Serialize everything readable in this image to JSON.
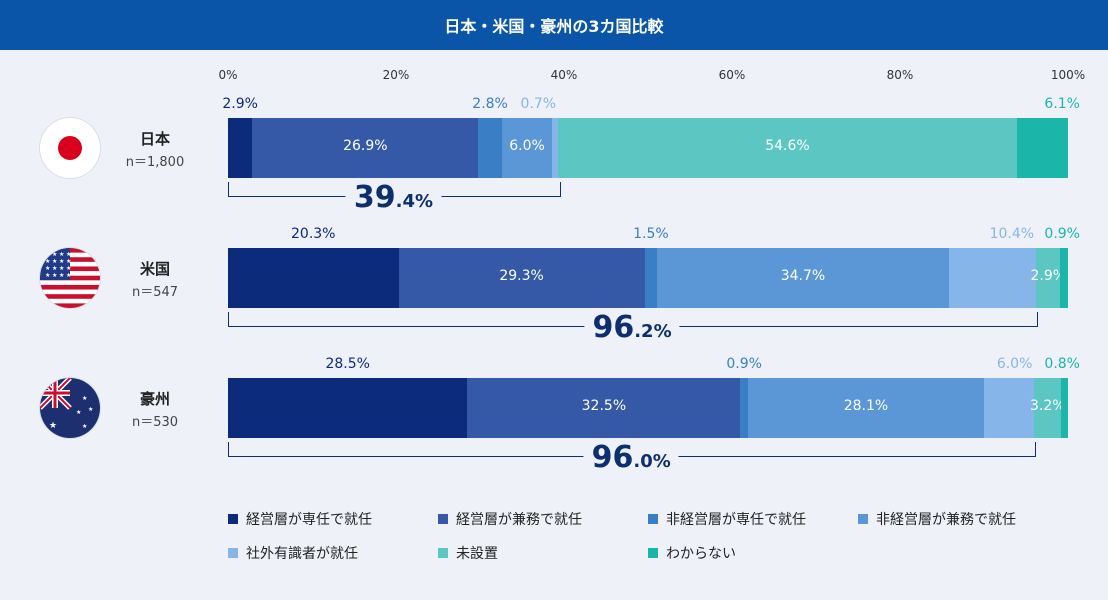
{
  "chart_data": {
    "type": "stacked-bar-horizontal",
    "title": "日本・米国・豪州の3カ国比較",
    "x_ticks": [
      "0%",
      "20%",
      "40%",
      "60%",
      "80%",
      "100%"
    ],
    "xlim": [
      0,
      100
    ],
    "categories": [
      {
        "name": "経営層が専任で就任",
        "color": "#0c2b7b"
      },
      {
        "name": "経営層が兼務で就任",
        "color": "#3659a7"
      },
      {
        "name": "非経営層が専任で就任",
        "color": "#3a7ec5"
      },
      {
        "name": "非経営層が兼務で就任",
        "color": "#5b97d6"
      },
      {
        "name": "社外有識者が就任",
        "color": "#86b6e9"
      },
      {
        "name": "未設置",
        "color": "#5cc7c2"
      },
      {
        "name": "わからない",
        "color": "#1bb5a9"
      }
    ],
    "rows": [
      {
        "country": "日本",
        "n_label": "n＝1,800",
        "flag": "japan-flag",
        "values": [
          2.9,
          26.9,
          2.8,
          6.0,
          0.7,
          54.6,
          6.1
        ],
        "labels": [
          "2.9%",
          "26.9%",
          "2.8%",
          "6.0%",
          "0.7%",
          "54.6%",
          "6.1%"
        ],
        "label_inside": [
          false,
          true,
          false,
          true,
          false,
          true,
          false
        ],
        "total_big": "39",
        "total_small": ".4%",
        "total_value": 39.4
      },
      {
        "country": "米国",
        "n_label": "n＝547",
        "flag": "usa-flag",
        "values": [
          20.3,
          29.3,
          1.5,
          34.7,
          10.4,
          2.9,
          0.9
        ],
        "labels": [
          "20.3%",
          "29.3%",
          "1.5%",
          "34.7%",
          "10.4%",
          "2.9%",
          "0.9%"
        ],
        "label_inside": [
          false,
          true,
          false,
          true,
          false,
          true,
          false
        ],
        "total_big": "96",
        "total_small": ".2%",
        "total_value": 96.2
      },
      {
        "country": "豪州",
        "n_label": "n＝530",
        "flag": "australia-flag",
        "values": [
          28.5,
          32.5,
          0.9,
          28.1,
          6.0,
          3.2,
          0.8
        ],
        "labels": [
          "28.5%",
          "32.5%",
          "0.9%",
          "28.1%",
          "6.0%",
          "3.2%",
          "0.8%"
        ],
        "label_inside": [
          false,
          true,
          false,
          true,
          false,
          true,
          false
        ],
        "total_big": "96",
        "total_small": ".0%",
        "total_value": 96.0
      }
    ]
  }
}
